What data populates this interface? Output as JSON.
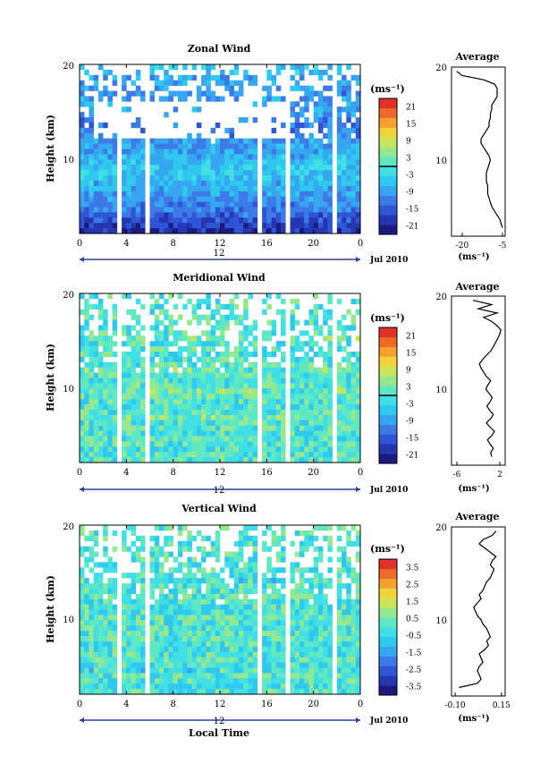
{
  "chart_data": [
    {
      "type": "heatmap",
      "title": "Zonal Wind",
      "ylabel": "Height (km)",
      "ylim": [
        0,
        20
      ],
      "y_ticks": [
        "20",
        "10"
      ],
      "x_ticks": [
        "0",
        "4",
        "8",
        "12",
        "16",
        "20",
        "0"
      ],
      "xlim": [
        0,
        24
      ],
      "date_center_label": "12",
      "date_right_label": "Jul 2010",
      "data_gaps_hours": [
        [
          3.3,
          3.7
        ],
        [
          5.5,
          5.9
        ],
        [
          15.3,
          15.7
        ],
        [
          17.5,
          17.9
        ],
        [
          21.5,
          21.9
        ]
      ],
      "colorbar": {
        "unit": "(ms⁻¹)",
        "ticks": [
          "21",
          "15",
          "9",
          "3",
          "-3",
          "-9",
          "-15",
          "-21"
        ],
        "range": [
          -24,
          24
        ],
        "contour_marker": 0
      },
      "profile_values_ms": [
        -20,
        -18,
        -16,
        -14,
        -12,
        -11,
        -10,
        -9,
        -8,
        -7,
        -6,
        -5,
        -5,
        -6,
        -7,
        -8,
        -9,
        -10,
        -11,
        -12,
        -12,
        -11,
        -10,
        -9,
        -9,
        -10,
        -10,
        -9,
        -8,
        -8,
        -6,
        -5
      ],
      "average": {
        "title": "Average",
        "ylim": [
          0,
          20
        ],
        "y_ticks": [
          "20",
          "10"
        ],
        "x_ticks": [
          "-20",
          "-5"
        ],
        "xlim": [
          -24,
          -4
        ],
        "xlabel": "(ms⁻¹)",
        "profile": {
          "height_km": [
            1,
            1.5,
            2,
            2.5,
            3,
            3.5,
            4,
            4.5,
            5,
            5.5,
            6,
            6.5,
            7,
            7.5,
            8,
            8.5,
            9,
            9.5,
            10,
            10.5,
            11,
            11.5,
            12,
            12.5,
            13,
            13.5,
            14,
            14.5,
            15,
            15.5,
            16,
            16.5,
            17,
            17.5,
            18,
            18.5,
            19,
            19.5
          ],
          "wind_ms": [
            -5,
            -5.5,
            -6,
            -7,
            -8,
            -9,
            -9.5,
            -10,
            -10.5,
            -10.5,
            -10.5,
            -11,
            -11,
            -11,
            -10.5,
            -10,
            -9.5,
            -10,
            -11,
            -12,
            -13,
            -13,
            -12,
            -11,
            -10,
            -10,
            -9.5,
            -9.5,
            -9,
            -9,
            -8,
            -7,
            -7,
            -7,
            -8,
            -12,
            -20,
            -22
          ]
        }
      }
    },
    {
      "type": "heatmap",
      "title": "Meridional Wind",
      "ylabel": "Height (km)",
      "ylim": [
        0,
        20
      ],
      "y_ticks": [
        "20",
        "10"
      ],
      "x_ticks": [
        "0",
        "4",
        "8",
        "12",
        "16",
        "20",
        "0"
      ],
      "xlim": [
        0,
        24
      ],
      "date_center_label": "12",
      "date_right_label": "Jul 2010",
      "data_gaps_hours": [
        [
          3.3,
          3.7
        ],
        [
          5.5,
          5.9
        ],
        [
          15.3,
          15.7
        ],
        [
          17.5,
          17.9
        ],
        [
          21.5,
          21.9
        ]
      ],
      "colorbar": {
        "unit": "(ms⁻¹)",
        "ticks": [
          "21",
          "15",
          "9",
          "3",
          "-3",
          "-9",
          "-15",
          "-21"
        ],
        "range": [
          -24,
          24
        ],
        "contour_marker": 0
      },
      "profile_values_ms": [
        1,
        0,
        -1,
        1,
        0,
        -1,
        1,
        0,
        2,
        1,
        -1,
        0,
        1,
        2,
        0,
        -1,
        1,
        2,
        1,
        0,
        -1,
        1,
        0,
        2,
        1,
        0,
        -1,
        1,
        2,
        0,
        1,
        0
      ],
      "average": {
        "title": "Average",
        "ylim": [
          0,
          20
        ],
        "y_ticks": [
          "20",
          "10"
        ],
        "x_ticks": [
          "-6",
          "2"
        ],
        "xlim": [
          -7,
          3
        ],
        "xlabel": "(ms⁻¹)",
        "profile": {
          "height_km": [
            1,
            1.5,
            2,
            2.5,
            3,
            3.5,
            4,
            4.5,
            5,
            5.5,
            6,
            6.5,
            7,
            7.5,
            8,
            8.5,
            9,
            9.5,
            10,
            10.5,
            11,
            11.5,
            12,
            12.5,
            13,
            13.5,
            14,
            14.5,
            15,
            15.5,
            16,
            16.5,
            17,
            17.5,
            18,
            18.5,
            19,
            19.5
          ],
          "wind_ms": [
            0.5,
            0.3,
            0.8,
            0.2,
            -0.3,
            0.5,
            1.0,
            0.2,
            -0.5,
            0.3,
            0.8,
            0.1,
            -0.4,
            0.2,
            0.6,
            0.0,
            -0.6,
            -0.2,
            0.3,
            -0.5,
            -1.0,
            -1.5,
            -1.8,
            -1.2,
            -0.5,
            0.3,
            0.8,
            1.2,
            1.6,
            2.0,
            2.2,
            1.5,
            0.5,
            -1.0,
            1.5,
            -2.0,
            0.5,
            -3.0
          ]
        }
      }
    },
    {
      "type": "heatmap",
      "title": "Vertical Wind",
      "ylabel": "Height (km)",
      "ylim": [
        0,
        20
      ],
      "y_ticks": [
        "20",
        "10"
      ],
      "x_ticks": [
        "0",
        "4",
        "8",
        "12",
        "16",
        "20",
        "0"
      ],
      "xlim": [
        0,
        24
      ],
      "xlabel": "Local Time",
      "date_center_label": "12",
      "date_right_label": "Jul 2010",
      "data_gaps_hours": [
        [
          3.3,
          3.7
        ],
        [
          5.5,
          5.9
        ],
        [
          15.3,
          15.7
        ],
        [
          17.5,
          17.9
        ],
        [
          21.5,
          21.9
        ]
      ],
      "colorbar": {
        "unit": "(ms⁻¹)",
        "ticks": [
          "3.5",
          "2.5",
          "1.5",
          "0.5",
          "-0.5",
          "-1.5",
          "-2.5",
          "-3.5"
        ],
        "range": [
          -4,
          4
        ]
      },
      "profile_values_ms": [
        -0.1,
        -0.2,
        -0.1,
        0,
        -0.3,
        -0.1,
        0.2,
        0,
        -0.1,
        -0.2,
        0.1,
        0,
        -0.1,
        0.1,
        0,
        -0.1,
        -0.2,
        0,
        0.1,
        -0.1,
        0,
        -0.2,
        -0.1,
        0.1,
        0,
        -0.1,
        0.1,
        0,
        -0.2,
        -0.1,
        0,
        0.1
      ],
      "average": {
        "title": "Average",
        "ylim": [
          0,
          20
        ],
        "y_ticks": [
          "20",
          "10"
        ],
        "x_ticks": [
          "-0.10",
          "0.15"
        ],
        "xlim": [
          -0.12,
          0.17
        ],
        "xlabel": "(ms⁻¹)",
        "profile": {
          "height_km": [
            1,
            1.5,
            2,
            2.5,
            3,
            3.5,
            4,
            4.5,
            5,
            5.5,
            6,
            6.5,
            7,
            7.5,
            8,
            8.5,
            9,
            9.5,
            10,
            10.5,
            11,
            11.5,
            12,
            12.5,
            13,
            13.5,
            14,
            14.5,
            15,
            15.5,
            16,
            16.5,
            17,
            17.5,
            18,
            18.5,
            19,
            19.5
          ],
          "wind_ms": [
            -0.08,
            0.02,
            0.04,
            0.03,
            0.02,
            0.03,
            0.05,
            0.04,
            0.03,
            0.06,
            0.08,
            0.07,
            0.09,
            0.08,
            0.07,
            0.05,
            0.04,
            0.02,
            0.01,
            0.0,
            0.02,
            0.04,
            0.03,
            0.05,
            0.06,
            0.07,
            0.09,
            0.1,
            0.11,
            0.09,
            0.1,
            0.12,
            0.09,
            0.06,
            0.03,
            0.05,
            0.1,
            0.12
          ]
        }
      }
    }
  ]
}
